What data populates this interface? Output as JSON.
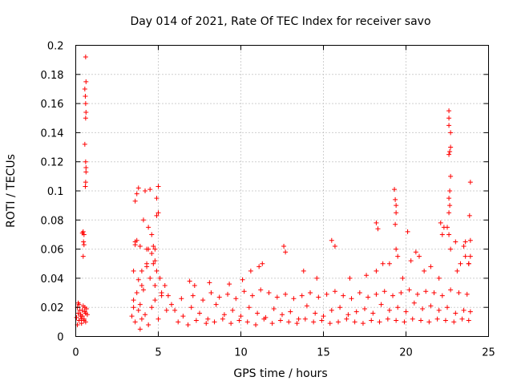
{
  "chart_data": {
    "type": "scatter",
    "title": "Day 014 of 2021, Rate Of TEC Index for receiver savo",
    "xlabel": "GPS time / hours",
    "ylabel": "ROTI / TECUs",
    "xlim": [
      0,
      25
    ],
    "ylim": [
      0,
      0.2
    ],
    "x_ticks": [
      "0",
      "5",
      "10",
      "15",
      "20",
      "25"
    ],
    "y_ticks": [
      "0",
      "0.02",
      "0.04",
      "0.06",
      "0.08",
      "0.1",
      "0.12",
      "0.14",
      "0.16",
      "0.18",
      "0.2"
    ],
    "grid": true,
    "marker": "+",
    "color": "#ff0000",
    "series": [
      {
        "x": [
          0.05,
          0.1,
          0.15,
          0.2,
          0.25,
          0.3,
          0.35,
          0.4,
          0.45,
          0.5,
          0.55,
          0.6,
          0.65,
          0.7,
          0.1,
          0.2,
          0.3,
          0.4,
          0.5,
          0.6,
          0.15,
          0.35,
          0.55,
          0.4,
          0.45,
          0.5,
          0.55,
          0.6,
          0.62,
          0.58,
          0.6,
          0.62,
          0.6,
          0.55,
          0.6,
          0.62,
          0.62,
          0.58,
          0.6,
          0.5,
          0.45,
          0.47,
          3.4,
          3.5,
          3.6,
          3.7,
          3.8,
          3.9,
          4.0,
          4.1,
          4.2,
          4.3,
          4.4,
          4.5,
          4.6,
          4.7,
          4.8,
          4.9,
          5.0,
          5.1,
          5.2,
          5.4,
          5.6,
          5.8,
          3.5,
          3.6,
          3.7,
          3.8,
          3.9,
          4.0,
          4.2,
          4.4,
          4.6,
          4.8,
          5.0,
          3.6,
          3.5,
          3.6,
          3.7,
          3.8,
          4.1,
          4.3,
          4.4,
          4.6,
          4.8,
          4.9,
          5.0,
          3.9,
          4.0,
          4.3,
          4.5,
          4.7,
          4.8,
          4.9,
          5.2,
          5.5,
          6.0,
          6.5,
          7.0,
          7.5,
          8.0,
          8.5,
          9.0,
          9.5,
          10.0,
          10.5,
          11.0,
          11.5,
          12.0,
          12.5,
          13.0,
          13.5,
          14.0,
          14.5,
          15.0,
          15.5,
          16.0,
          16.5,
          17.0,
          17.5,
          18.0,
          18.5,
          19.0,
          19.5,
          20.0,
          20.5,
          21.0,
          21.5,
          22.0,
          22.5,
          23.0,
          23.5,
          23.9,
          6.2,
          6.8,
          7.3,
          7.9,
          8.4,
          8.9,
          9.4,
          9.9,
          10.4,
          10.9,
          11.4,
          11.9,
          12.4,
          12.9,
          13.4,
          13.9,
          14.4,
          14.9,
          15.4,
          15.9,
          16.4,
          16.9,
          17.4,
          17.9,
          18.4,
          18.9,
          19.4,
          19.9,
          20.4,
          20.9,
          21.4,
          21.9,
          22.4,
          22.9,
          23.4,
          23.8,
          6.4,
          7.1,
          7.7,
          8.2,
          8.7,
          9.2,
          9.7,
          10.2,
          10.7,
          11.2,
          11.7,
          12.2,
          12.7,
          13.2,
          13.7,
          14.2,
          14.7,
          15.2,
          15.7,
          16.2,
          16.7,
          17.2,
          17.7,
          18.2,
          18.7,
          19.2,
          19.7,
          20.2,
          20.7,
          21.2,
          21.7,
          22.2,
          22.7,
          23.2,
          23.7,
          6.9,
          7.2,
          8.1,
          9.3,
          10.1,
          10.6,
          11.1,
          11.3,
          12.6,
          12.7,
          13.8,
          14.6,
          15.5,
          15.7,
          16.6,
          17.6,
          18.2,
          18.6,
          19.0,
          19.4,
          19.5,
          19.8,
          20.3,
          20.6,
          21.1,
          21.5,
          22.0,
          22.5,
          22.6,
          22.7,
          23.1,
          23.3,
          23.6,
          23.8,
          23.9,
          19.3,
          19.4,
          19.35,
          18.2,
          18.3,
          19.35,
          19.4,
          20.1,
          20.8,
          22.1,
          22.2,
          22.3,
          22.6,
          22.6,
          22.6,
          22.7,
          22.7,
          22.65,
          22.6,
          22.7,
          22.65,
          22.6,
          22.65,
          22.6,
          23.0,
          23.5,
          23.6,
          23.8,
          23.9,
          23.85,
          23.9
        ],
        "y": [
          0.013,
          0.02,
          0.016,
          0.011,
          0.018,
          0.015,
          0.009,
          0.014,
          0.021,
          0.012,
          0.017,
          0.01,
          0.019,
          0.015,
          0.008,
          0.022,
          0.014,
          0.018,
          0.011,
          0.016,
          0.023,
          0.012,
          0.02,
          0.071,
          0.055,
          0.063,
          0.17,
          0.192,
          0.175,
          0.165,
          0.16,
          0.154,
          0.15,
          0.132,
          0.12,
          0.116,
          0.113,
          0.103,
          0.106,
          0.07,
          0.072,
          0.065,
          0.014,
          0.02,
          0.065,
          0.098,
          0.102,
          0.062,
          0.045,
          0.08,
          0.1,
          0.06,
          0.075,
          0.101,
          0.07,
          0.05,
          0.06,
          0.083,
          0.103,
          0.04,
          0.03,
          0.035,
          0.028,
          0.022,
          0.025,
          0.01,
          0.03,
          0.018,
          0.005,
          0.012,
          0.015,
          0.008,
          0.02,
          0.025,
          0.012,
          0.093,
          0.045,
          0.063,
          0.066,
          0.039,
          0.032,
          0.05,
          0.06,
          0.057,
          0.035,
          0.045,
          0.085,
          0.022,
          0.035,
          0.048,
          0.04,
          0.062,
          0.052,
          0.095,
          0.028,
          0.018,
          0.018,
          0.014,
          0.02,
          0.016,
          0.012,
          0.022,
          0.015,
          0.018,
          0.014,
          0.02,
          0.016,
          0.013,
          0.019,
          0.015,
          0.017,
          0.012,
          0.021,
          0.016,
          0.014,
          0.018,
          0.02,
          0.015,
          0.017,
          0.019,
          0.016,
          0.022,
          0.018,
          0.02,
          0.017,
          0.023,
          0.019,
          0.021,
          0.018,
          0.02,
          0.016,
          0.018,
          0.017,
          0.01,
          0.008,
          0.011,
          0.009,
          0.01,
          0.012,
          0.009,
          0.011,
          0.01,
          0.008,
          0.012,
          0.009,
          0.011,
          0.01,
          0.009,
          0.012,
          0.01,
          0.011,
          0.009,
          0.01,
          0.012,
          0.01,
          0.009,
          0.011,
          0.01,
          0.012,
          0.011,
          0.01,
          0.012,
          0.011,
          0.01,
          0.012,
          0.011,
          0.01,
          0.012,
          0.011,
          0.026,
          0.028,
          0.025,
          0.03,
          0.027,
          0.029,
          0.026,
          0.031,
          0.028,
          0.032,
          0.03,
          0.027,
          0.029,
          0.026,
          0.028,
          0.03,
          0.027,
          0.029,
          0.031,
          0.028,
          0.026,
          0.03,
          0.027,
          0.029,
          0.031,
          0.028,
          0.03,
          0.032,
          0.029,
          0.031,
          0.03,
          0.028,
          0.032,
          0.03,
          0.029,
          0.038,
          0.035,
          0.037,
          0.036,
          0.039,
          0.045,
          0.048,
          0.05,
          0.062,
          0.058,
          0.045,
          0.04,
          0.066,
          0.062,
          0.04,
          0.042,
          0.045,
          0.05,
          0.05,
          0.06,
          0.055,
          0.04,
          0.052,
          0.058,
          0.045,
          0.048,
          0.04,
          0.075,
          0.07,
          0.06,
          0.045,
          0.05,
          0.065,
          0.05,
          0.055,
          0.101,
          0.09,
          0.094,
          0.078,
          0.074,
          0.077,
          0.085,
          0.072,
          0.055,
          0.078,
          0.07,
          0.075,
          0.155,
          0.15,
          0.145,
          0.14,
          0.13,
          0.127,
          0.125,
          0.11,
          0.1,
          0.095,
          0.09,
          0.085,
          0.065,
          0.062,
          0.055,
          0.05,
          0.106,
          0.083,
          0.066
        ]
      }
    ]
  }
}
